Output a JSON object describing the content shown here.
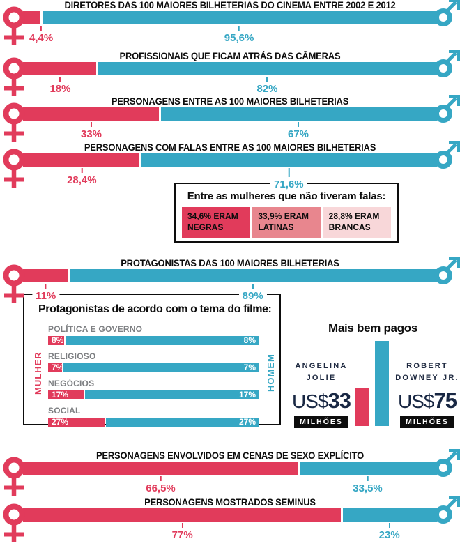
{
  "colors": {
    "female": "#e13b5b",
    "male": "#36a7c4",
    "negras": "#e13b5b",
    "latinas": "#e8868e",
    "brancas": "#f8d7d9",
    "navy": "#1e2940",
    "badge_bg": "#0d0d0d"
  },
  "gender_bars": [
    {
      "title": "DIRETORES DAS 100 MAIORES BILHETERIAS DO CINEMA ENTRE 2002 E 2012",
      "female_label": "4,4%",
      "female_value": 4.4,
      "male_label": "95,6%",
      "male_value": 95.6
    },
    {
      "title": "PROFISSIONAIS QUE FICAM ATRÁS DAS CÂMERAS",
      "female_label": "18%",
      "female_value": 18,
      "male_label": "82%",
      "male_value": 82
    },
    {
      "title": "PERSONAGENS ENTRE AS 100 MAIORES BILHETERIAS",
      "female_label": "33%",
      "female_value": 33,
      "male_label": "67%",
      "male_value": 67
    },
    {
      "title": "PERSONAGENS COM FALAS ENTRE AS 100 MAIORES BILHETERIAS",
      "female_label": "28,4%",
      "female_value": 28.4,
      "male_label": "71,6%",
      "male_value": 71.6
    },
    {
      "title": "PROTAGONISTAS DAS 100 MAIORES BILHETERIAS",
      "female_label": "11%",
      "female_value": 11,
      "male_label": "89%",
      "male_value": 89
    },
    {
      "title": "PERSONAGENS ENVOLVIDOS EM CENAS DE SEXO EXPLÍCITO",
      "female_label": "66,5%",
      "female_value": 66.5,
      "male_label": "33,5%",
      "male_value": 33.5
    },
    {
      "title": "PERSONAGENS MOSTRADOS SEMINUS",
      "female_label": "77%",
      "female_value": 77,
      "male_label": "23%",
      "male_value": 23
    }
  ],
  "no_speaking_box": {
    "title": "Entre as mulheres que não tiveram falas:",
    "items": [
      {
        "label": "34,6% ERAM NEGRAS",
        "color_key": "negras"
      },
      {
        "label": "33,9% ERAM LATINAS",
        "color_key": "latinas"
      },
      {
        "label": "28,8% ERAM BRANCAS",
        "color_key": "brancas"
      }
    ]
  },
  "themes_box": {
    "title": "Protagonistas de acordo com o tema do filme:",
    "left_axis": "MULHER",
    "right_axis": "HOMEM",
    "rows": [
      {
        "label": "POLÍTICA E GOVERNO",
        "value": 8,
        "value_label": "8%"
      },
      {
        "label": "RELIGIOSO",
        "value": 7,
        "value_label": "7%"
      },
      {
        "label": "NEGÓCIOS",
        "value": 17,
        "value_label": "17%"
      },
      {
        "label": "SOCIAL",
        "value": 27,
        "value_label": "27%"
      }
    ]
  },
  "paid": {
    "title": "Mais bem pagos",
    "people": [
      {
        "name_line1": "ANGELINA",
        "name_line2": "JOLIE",
        "currency": "US$",
        "amount": "33",
        "unit": "MILHÕES",
        "value": 33,
        "color_key": "female"
      },
      {
        "name_line1": "ROBERT",
        "name_line2": "DOWNEY JR.",
        "currency": "US$",
        "amount": "75",
        "unit": "MILHÕES",
        "value": 75,
        "color_key": "male"
      }
    ]
  },
  "chart_data": [
    {
      "type": "bar",
      "title": "Mulheres vs Homens no cinema (participação %)",
      "categories": [
        "DIRETORES DAS 100 MAIORES BILHETERIAS DO CINEMA ENTRE 2002 E 2012",
        "PROFISSIONAIS QUE FICAM ATRÁS DAS CÂMERAS",
        "PERSONAGENS ENTRE AS 100 MAIORES BILHETERIAS",
        "PERSONAGENS COM FALAS ENTRE AS 100 MAIORES BILHETERIAS",
        "PROTAGONISTAS DAS 100 MAIORES BILHETERIAS",
        "PERSONAGENS ENVOLVIDOS EM CENAS DE SEXO EXPLÍCITO",
        "PERSONAGENS MOSTRADOS SEMINUS"
      ],
      "series": [
        {
          "name": "Mulheres",
          "values": [
            4.4,
            18,
            33,
            28.4,
            11,
            66.5,
            77
          ]
        },
        {
          "name": "Homens",
          "values": [
            95.6,
            82,
            67,
            71.6,
            89,
            33.5,
            23
          ]
        }
      ],
      "ylim": [
        0,
        100
      ],
      "legend_position": "bar-ends"
    },
    {
      "type": "bar",
      "title": "Entre as mulheres que não tiveram falas:",
      "categories": [
        "Negras",
        "Latinas",
        "Brancas"
      ],
      "values": [
        34.6,
        33.9,
        28.8
      ]
    },
    {
      "type": "bar",
      "title": "Protagonistas de acordo com o tema do filme:",
      "categories": [
        "Política e governo",
        "Religioso",
        "Negócios",
        "Social"
      ],
      "series": [
        {
          "name": "Mulher",
          "values": [
            8,
            7,
            17,
            27
          ]
        },
        {
          "name": "Homem",
          "values": [
            8,
            7,
            17,
            27
          ]
        }
      ]
    },
    {
      "type": "bar",
      "title": "Mais bem pagos",
      "categories": [
        "Angelina Jolie",
        "Robert Downey Jr."
      ],
      "values": [
        33,
        75
      ],
      "ylabel": "US$ milhões"
    }
  ]
}
